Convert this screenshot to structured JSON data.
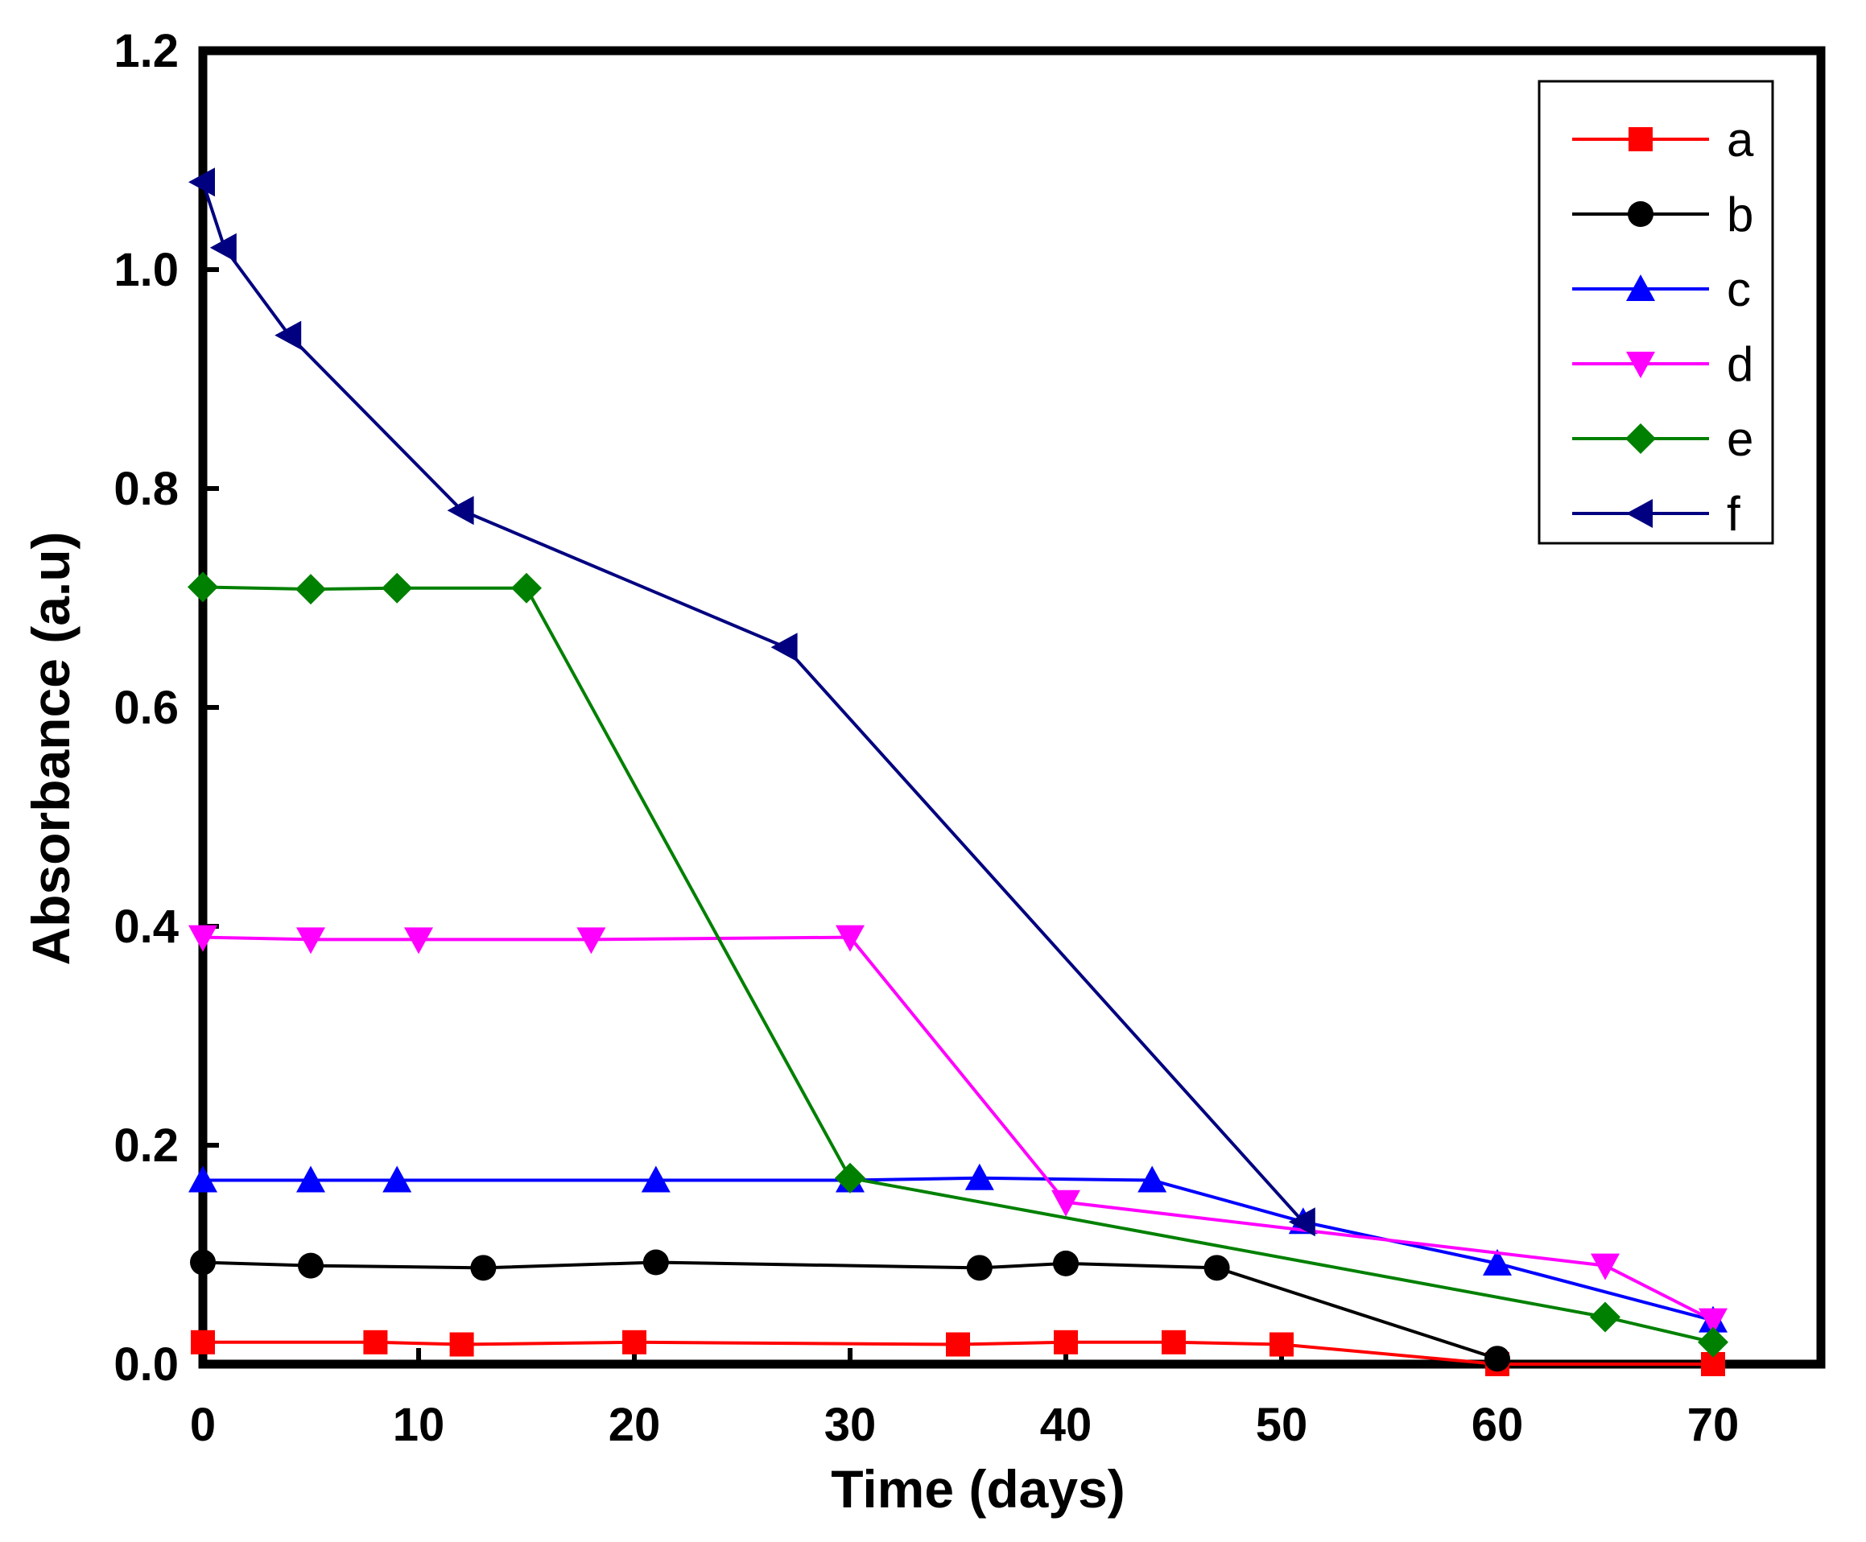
{
  "chart_data": {
    "type": "line",
    "title": "",
    "xlabel": "Time (days)",
    "ylabel": "Absorbance (a.u)",
    "xlim": [
      0,
      75
    ],
    "ylim": [
      0,
      1.2
    ],
    "xticks": [
      0,
      10,
      20,
      30,
      40,
      50,
      60,
      70
    ],
    "xtick_labels": [
      "0",
      "10",
      "20",
      "30",
      "40",
      "50",
      "60",
      "70"
    ],
    "yticks": [
      0.0,
      0.2,
      0.4,
      0.6,
      0.8,
      1.0,
      1.2
    ],
    "ytick_labels": [
      "0.0",
      "0.2",
      "0.4",
      "0.6",
      "0.8",
      "1.0",
      "1.2"
    ],
    "grid": false,
    "legend_position": "top-right",
    "series": [
      {
        "name": "a",
        "color": "#ff0000",
        "marker": "square",
        "x": [
          0,
          8,
          12,
          20,
          35,
          40,
          45,
          50,
          60,
          70
        ],
        "y": [
          0.02,
          0.02,
          0.018,
          0.02,
          0.018,
          0.02,
          0.02,
          0.018,
          0.0,
          0.0
        ]
      },
      {
        "name": "b",
        "color": "#000000",
        "marker": "circle",
        "x": [
          0,
          5,
          13,
          21,
          36,
          40,
          47,
          60
        ],
        "y": [
          0.093,
          0.09,
          0.088,
          0.093,
          0.088,
          0.092,
          0.088,
          0.005
        ]
      },
      {
        "name": "c",
        "color": "#0000ff",
        "marker": "triangle-up",
        "x": [
          0,
          5,
          9,
          21,
          30,
          36,
          44,
          51,
          60,
          70
        ],
        "y": [
          0.168,
          0.168,
          0.168,
          0.168,
          0.168,
          0.17,
          0.168,
          0.13,
          0.092,
          0.04
        ]
      },
      {
        "name": "d",
        "color": "#ff00ff",
        "marker": "triangle-down",
        "x": [
          0,
          5,
          10,
          18,
          30,
          40,
          65,
          70
        ],
        "y": [
          0.39,
          0.388,
          0.388,
          0.388,
          0.39,
          0.148,
          0.09,
          0.04
        ]
      },
      {
        "name": "e",
        "color": "#008000",
        "marker": "diamond",
        "x": [
          0,
          5,
          9,
          15,
          30,
          65,
          70
        ],
        "y": [
          0.71,
          0.708,
          0.709,
          0.709,
          0.17,
          0.043,
          0.02
        ]
      },
      {
        "name": "f",
        "color": "#000080",
        "marker": "triangle-left",
        "x": [
          0,
          1,
          4,
          12,
          27,
          51
        ],
        "y": [
          1.08,
          1.02,
          0.94,
          0.78,
          0.655,
          0.13
        ]
      }
    ]
  }
}
